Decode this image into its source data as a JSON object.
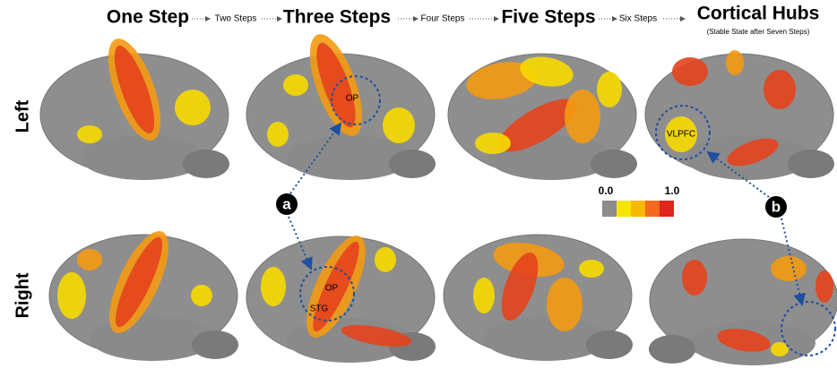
{
  "header": {
    "steps": [
      "One Step",
      "Two Steps",
      "Three Steps",
      "Four Steps",
      "Five Steps",
      "Six Steps",
      "Cortical Hubs"
    ],
    "hubs_subtitle": "(Stable State after Seven Steps)"
  },
  "rows": [
    "Left",
    "Right"
  ],
  "regions": {
    "left_op": "OP",
    "left_vlpfc": "VLPFC",
    "right_op": "OP",
    "right_stg": "STG"
  },
  "callouts": [
    "a",
    "b"
  ],
  "colorbar": {
    "min": "0.0",
    "max": "1.0",
    "colors": [
      "#8c8c8c",
      "#f7e400",
      "#fbb800",
      "#f36a1e",
      "#e0251c"
    ]
  }
}
